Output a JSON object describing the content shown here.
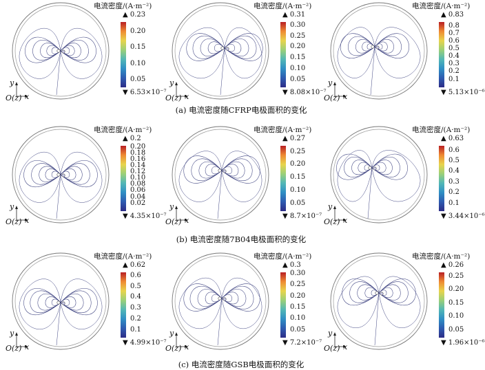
{
  "unit_label": "电流密度/(A·m⁻²)",
  "axis": {
    "y": "y",
    "x": "x",
    "origin": "O(z)"
  },
  "captions": [
    "(a) 电流密度随CFRP电极面积的变化",
    "(b) 电流密度随7B04电极面积的变化",
    "(c) 电流密度随GSB电极面积的变化"
  ],
  "colorbar_gradient": [
    "#2d2c86",
    "#2e5bb0",
    "#2f8fc4",
    "#52b7b6",
    "#9bd078",
    "#e8d44c",
    "#ef8a32",
    "#b81f24"
  ],
  "line_color": "#3a3f7e",
  "panels": [
    {
      "max": "▲ 0.23",
      "min": "▼ 6.53×10⁻⁷",
      "ticks": [
        "0.20",
        "0.15",
        "0.10",
        "0.05"
      ],
      "frac_top": 0.87
    },
    {
      "max": "▲ 0.31",
      "min": "▼ 8.08×10⁻⁷",
      "ticks": [
        "0.30",
        "0.25",
        "0.20",
        "0.15",
        "0.10",
        "0.05"
      ],
      "frac_top": 0.97
    },
    {
      "max": "▲ 0.83",
      "min": "▼ 5.13×10⁻⁶",
      "ticks": [
        "0.8",
        "0.7",
        "0.6",
        "0.5",
        "0.4",
        "0.3",
        "0.2",
        "0.1"
      ],
      "frac_top": 0.96
    },
    {
      "max": "▲ 0.2",
      "min": "▼ 4.35×10⁻⁷",
      "ticks": [
        "0.20",
        "0.18",
        "0.16",
        "0.14",
        "0.12",
        "0.10",
        "0.08",
        "0.06",
        "0.04",
        "0.02"
      ],
      "frac_top": 1.0
    },
    {
      "max": "▲ 0.27",
      "min": "▼ 8.7×10⁻⁷",
      "ticks": [
        "0.25",
        "0.20",
        "0.15",
        "0.10",
        "0.05"
      ],
      "frac_top": 0.93
    },
    {
      "max": "▲ 0.63",
      "min": "▼ 3.44×10⁻⁶",
      "ticks": [
        "0.6",
        "0.5",
        "0.4",
        "0.3",
        "0.2",
        "0.1"
      ],
      "frac_top": 0.95
    },
    {
      "max": "▲ 0.62",
      "min": "▼ 4.99×10⁻⁷",
      "ticks": [
        "0.6",
        "0.5",
        "0.4",
        "0.3",
        "0.2",
        "0.1"
      ],
      "frac_top": 0.97
    },
    {
      "max": "▲ 0.3",
      "min": "▼ 7.2×10⁻⁷",
      "ticks": [
        "0.30",
        "0.25",
        "0.20",
        "0.15",
        "0.10",
        "0.05"
      ],
      "frac_top": 1.0
    },
    {
      "max": "▲ 0.26",
      "min": "▼ 1.96×10⁻⁶",
      "ticks": [
        "0.25",
        "0.20",
        "0.15",
        "0.10",
        "0.05"
      ],
      "frac_top": 0.96
    }
  ]
}
